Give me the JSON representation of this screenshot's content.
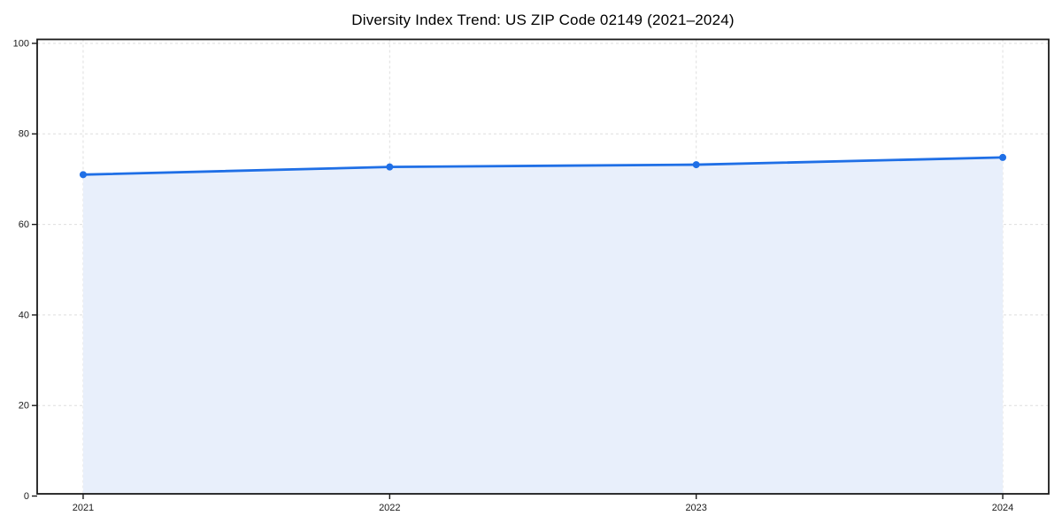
{
  "chart_data": {
    "type": "line",
    "title": "Diversity Index Trend: US ZIP Code 02149 (2021–2024)",
    "categories": [
      "2021",
      "2022",
      "2023",
      "2024"
    ],
    "series": [
      {
        "name": "Diversity Index",
        "values": [
          71.0,
          72.7,
          73.2,
          74.8
        ]
      }
    ],
    "xlabel": "",
    "ylabel": "",
    "ylim": [
      0,
      100
    ],
    "yticks": [
      0,
      20,
      40,
      60,
      80,
      100
    ],
    "grid": true,
    "grid_style": "dashed",
    "legend_position": "none",
    "area_fill": true,
    "marker": "circle",
    "colors": {
      "line": "#1f6fe6",
      "marker": "#1f6fe6",
      "area_fill": "#e8effb",
      "grid": "#dedede",
      "axis": "#1a1a1a",
      "tick_text": "#1a1a1a",
      "title_text": "#000000",
      "background": "#ffffff"
    }
  }
}
